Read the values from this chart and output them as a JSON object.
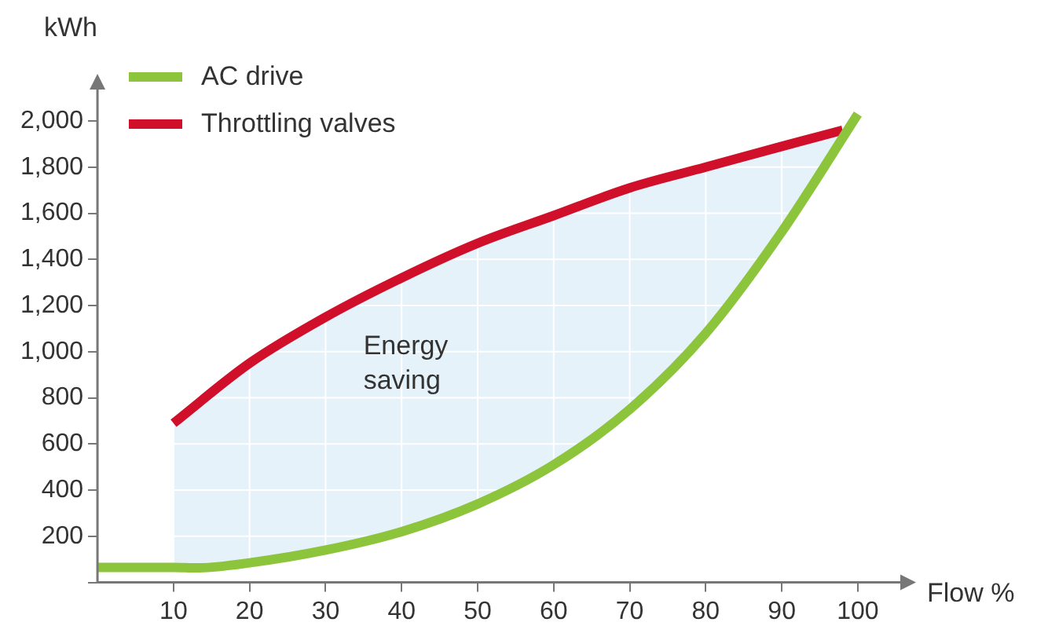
{
  "chart_data": {
    "type": "line",
    "xlabel": "Flow %",
    "ylabel": "kWh",
    "xlim": [
      0,
      106
    ],
    "xticks": [
      10,
      20,
      30,
      40,
      50,
      60,
      70,
      80,
      90,
      100
    ],
    "ylim": [
      0,
      2150
    ],
    "yticks": [
      {
        "value": 0,
        "label": null
      },
      {
        "value": 200,
        "label": "200"
      },
      {
        "value": 400,
        "label": "400"
      },
      {
        "value": 600,
        "label": "600"
      },
      {
        "value": 800,
        "label": "800"
      },
      {
        "value": 1000,
        "label": "1,000"
      },
      {
        "value": 1200,
        "label": "1,200"
      },
      {
        "value": 1400,
        "label": "1,400"
      },
      {
        "value": 1600,
        "label": "1,600"
      },
      {
        "value": 1800,
        "label": "1,800"
      },
      {
        "value": 2000,
        "label": "2,000"
      }
    ],
    "series": [
      {
        "name": "AC drive",
        "color": "#8cc43c",
        "x": [
          0,
          10,
          13,
          20,
          30,
          40,
          50,
          60,
          70,
          80,
          90,
          100
        ],
        "values": [
          65,
          65,
          63,
          85,
          140,
          220,
          340,
          510,
          750,
          1080,
          1520,
          2030
        ]
      },
      {
        "name": "Throttling valves",
        "color": "#d0102a",
        "x": [
          10,
          20,
          30,
          40,
          50,
          60,
          70,
          80,
          90,
          98
        ],
        "values": [
          690,
          950,
          1150,
          1320,
          1470,
          1590,
          1710,
          1800,
          1890,
          1960
        ],
        "lower": [
          65,
          85,
          140,
          220,
          340,
          510,
          750,
          1080,
          1520,
          1930
        ],
        "upper": [
          690,
          950,
          1150,
          1320,
          1470,
          1590,
          1710,
          1800,
          1890,
          1960
        ]
      }
    ],
    "annotations": [
      "Energy\nsaving"
    ],
    "grid": true,
    "legend": "top left",
    "marker": "none",
    "line_style": "solid"
  }
}
